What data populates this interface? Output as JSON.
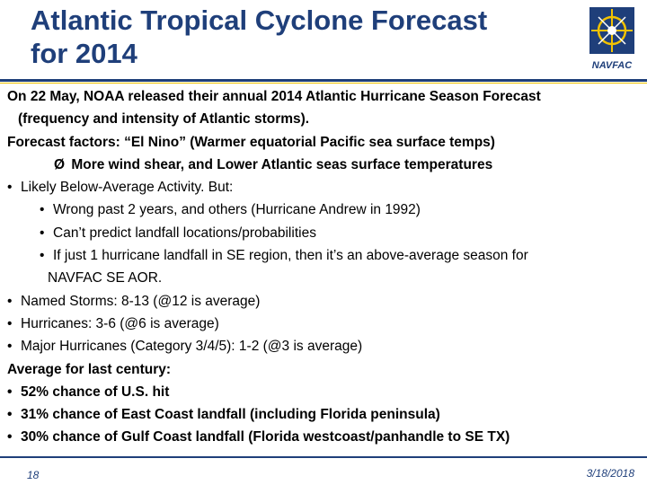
{
  "slide": {
    "title_line1": "Atlantic Tropical Cyclone Forecast",
    "title_line2": "for 2014",
    "logo_text": "NAVFAC",
    "page_number": "18",
    "date": "3/18/2018"
  },
  "content": {
    "intro_1": "On 22 May, NOAA released their annual 2014 Atlantic Hurricane Season Forecast",
    "intro_2": "(frequency and intensity of Atlantic storms).",
    "factors": "Forecast factors: “El Nino” (Warmer equatorial Pacific sea surface temps)",
    "arrow_item": "More wind shear, and Lower Atlantic seas surface temperatures",
    "likely": "Likely Below-Average Activity.  But:",
    "sub_1": "Wrong past 2 years, and others (Hurricane Andrew in 1992)",
    "sub_2": "Can’t predict landfall locations/probabilities",
    "sub_3a": "If just 1 hurricane landfall in SE region, then it’s an above-average season for",
    "sub_3b": "NAVFAC SE AOR.",
    "named_storms": "Named Storms: 8-13 (@12 is average)",
    "hurricanes": "Hurricanes: 3-6 (@6 is average)",
    "major": "Major Hurricanes (Category 3/4/5): 1-2 (@3 is average)",
    "average_heading": "Average for last century:",
    "stat_1": "52% chance of U.S. hit",
    "stat_2": "31% chance of East Coast landfall (including Florida peninsula)",
    "stat_3": "30% chance of Gulf Coast landfall (Florida westcoast/panhandle to SE TX)"
  },
  "glyphs": {
    "bullet": "•",
    "arrow": "Ø"
  },
  "colors": {
    "title": "#1f3f7a",
    "logo_bg": "#1f3f7a",
    "logo_accent": "#f2c200"
  }
}
